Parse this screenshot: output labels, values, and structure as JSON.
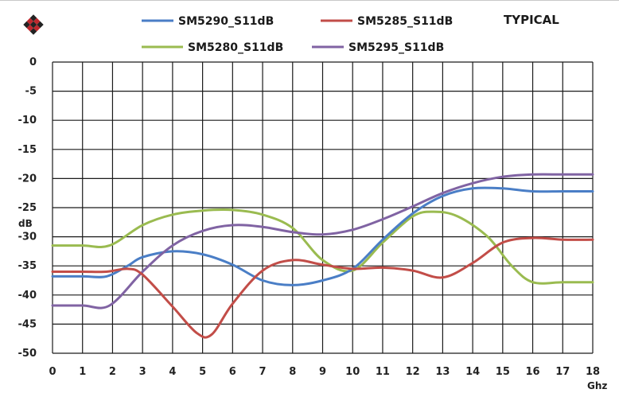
{
  "chart_data": {
    "type": "line",
    "title": "TYPICAL",
    "xlabel": "Ghz",
    "ylabel": "dB",
    "xlim": [
      0,
      18
    ],
    "ylim": [
      -50,
      0
    ],
    "x_ticks": [
      0,
      1,
      2,
      3,
      4,
      5,
      6,
      7,
      8,
      9,
      10,
      11,
      12,
      13,
      14,
      15,
      16,
      17,
      18
    ],
    "y_ticks": [
      0,
      -5,
      -10,
      -15,
      -20,
      -25,
      -30,
      -35,
      -40,
      -45,
      -50
    ],
    "grid": true,
    "legend_placement": "top",
    "series": [
      {
        "name": "SM5290_S11dB",
        "color": "#4a7ec6",
        "points": [
          [
            0,
            -36.8
          ],
          [
            1,
            -36.8
          ],
          [
            1.8,
            -36.8
          ],
          [
            2.5,
            -35
          ],
          [
            3,
            -33.5
          ],
          [
            4,
            -32.5
          ],
          [
            5,
            -33
          ],
          [
            6,
            -34.8
          ],
          [
            7,
            -37.5
          ],
          [
            8,
            -38.3
          ],
          [
            9,
            -37.5
          ],
          [
            10,
            -35.5
          ],
          [
            11,
            -30.5
          ],
          [
            12,
            -26
          ],
          [
            13,
            -23
          ],
          [
            14,
            -21.7
          ],
          [
            15,
            -21.7
          ],
          [
            16,
            -22.2
          ],
          [
            17,
            -22.2
          ],
          [
            18,
            -22.2
          ]
        ]
      },
      {
        "name": "SM5285_S11dB",
        "color": "#c24d48",
        "points": [
          [
            0,
            -36
          ],
          [
            1,
            -36
          ],
          [
            1.8,
            -36
          ],
          [
            2.5,
            -35.5
          ],
          [
            3,
            -36.5
          ],
          [
            4,
            -42
          ],
          [
            4.8,
            -46.5
          ],
          [
            5.3,
            -46.8
          ],
          [
            6,
            -41.5
          ],
          [
            7,
            -35.8
          ],
          [
            8,
            -34
          ],
          [
            9,
            -34.8
          ],
          [
            10,
            -35.5
          ],
          [
            11,
            -35.3
          ],
          [
            12,
            -35.8
          ],
          [
            13,
            -37
          ],
          [
            14,
            -34.5
          ],
          [
            15,
            -31
          ],
          [
            16,
            -30.2
          ],
          [
            17,
            -30.5
          ],
          [
            18,
            -30.5
          ]
        ]
      },
      {
        "name": "SM5280_S11dB",
        "color": "#9abb50",
        "points": [
          [
            0,
            -31.5
          ],
          [
            1,
            -31.5
          ],
          [
            1.9,
            -31.5
          ],
          [
            3,
            -28
          ],
          [
            4,
            -26.2
          ],
          [
            5,
            -25.5
          ],
          [
            6,
            -25.4
          ],
          [
            7,
            -26.2
          ],
          [
            8,
            -28.5
          ],
          [
            9,
            -34
          ],
          [
            10,
            -35.8
          ],
          [
            11,
            -31
          ],
          [
            12,
            -26.5
          ],
          [
            12.7,
            -25.7
          ],
          [
            13.5,
            -26.5
          ],
          [
            14.5,
            -30
          ],
          [
            15.3,
            -35
          ],
          [
            16,
            -37.8
          ],
          [
            17,
            -37.8
          ],
          [
            18,
            -37.8
          ]
        ]
      },
      {
        "name": "SM5295_S11dB",
        "color": "#8063a3",
        "points": [
          [
            0,
            -41.8
          ],
          [
            1,
            -41.8
          ],
          [
            1.9,
            -41.8
          ],
          [
            3,
            -36
          ],
          [
            4,
            -31.5
          ],
          [
            5,
            -29
          ],
          [
            6,
            -28
          ],
          [
            7,
            -28.3
          ],
          [
            8,
            -29.2
          ],
          [
            9,
            -29.6
          ],
          [
            10,
            -28.8
          ],
          [
            11,
            -27
          ],
          [
            12,
            -24.8
          ],
          [
            13,
            -22.5
          ],
          [
            14,
            -20.8
          ],
          [
            15,
            -19.7
          ],
          [
            16,
            -19.3
          ],
          [
            17,
            -19.3
          ],
          [
            18,
            -19.3
          ]
        ]
      }
    ]
  }
}
